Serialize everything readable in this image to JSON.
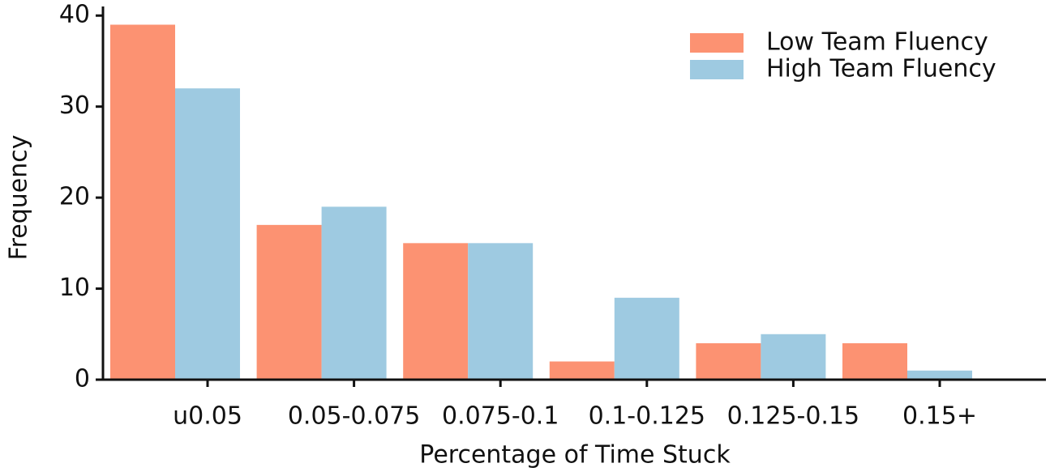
{
  "chart_data": {
    "type": "bar",
    "x_label": "Percentage of Time Stuck",
    "y_label": "Frequency",
    "categories": [
      "u0.05",
      "0.05-0.075",
      "0.075-0.1",
      "0.1-0.125",
      "0.125-0.15",
      "0.15+"
    ],
    "series": [
      {
        "name": "Low Team Fluency",
        "color": "#fc9272",
        "values": [
          39,
          17,
          15,
          2,
          4,
          4
        ]
      },
      {
        "name": "High Team Fluency",
        "color": "#9ecae1",
        "values": [
          32,
          19,
          15,
          9,
          5,
          1
        ]
      }
    ],
    "ylim": [
      0,
      41
    ],
    "yticks": [
      0,
      10,
      20,
      30,
      40
    ],
    "legend": "upper right",
    "grid": false
  }
}
